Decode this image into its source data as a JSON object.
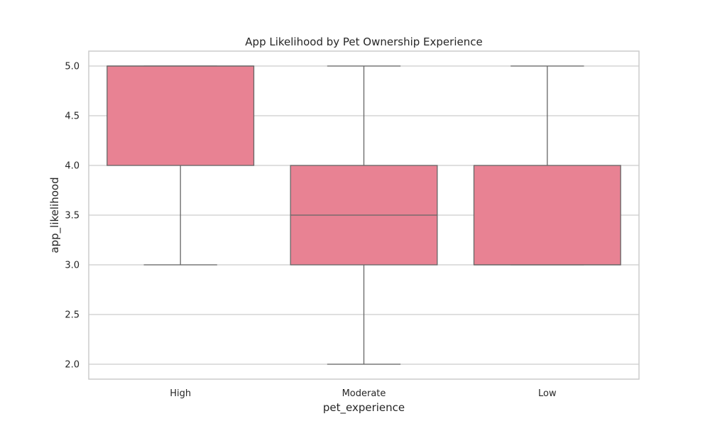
{
  "chart_data": {
    "type": "box",
    "title": "App Likelihood by Pet Ownership Experience",
    "xlabel": "pet_experience",
    "ylabel": "app_likelihood",
    "categories": [
      "High",
      "Moderate",
      "Low"
    ],
    "ylim": [
      1.85,
      5.15
    ],
    "yticks": [
      2.0,
      2.5,
      3.0,
      3.5,
      4.0,
      4.5,
      5.0
    ],
    "ytick_labels": [
      "2.0",
      "2.5",
      "3.0",
      "3.5",
      "4.0",
      "4.5",
      "5.0"
    ],
    "boxes": [
      {
        "category": "High",
        "whisker_low": 3.0,
        "q1": 4.0,
        "median": 5.0,
        "q3": 5.0,
        "whisker_high": 5.0
      },
      {
        "category": "Moderate",
        "whisker_low": 2.0,
        "q1": 3.0,
        "median": 3.5,
        "q3": 4.0,
        "whisker_high": 5.0
      },
      {
        "category": "Low",
        "whisker_low": 3.0,
        "q1": 3.0,
        "median": 3.0,
        "q3": 4.0,
        "whisker_high": 5.0
      }
    ],
    "grid": true,
    "colors": {
      "box_fill": "#e88293",
      "line": "#666666",
      "grid": "#cccccc",
      "frame": "#cccccc"
    }
  }
}
